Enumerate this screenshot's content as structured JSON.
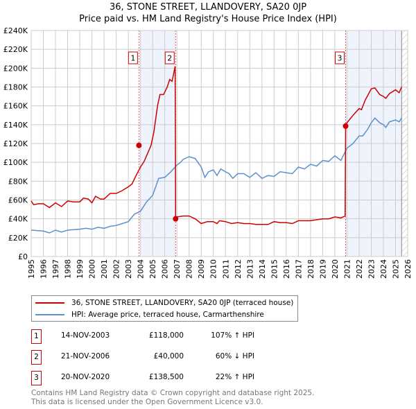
{
  "chart_data": {
    "type": "line",
    "title": "36, STONE STREET, LLANDOVERY, SA20 0JP",
    "subtitle": "Price paid vs. HM Land Registry's House Price Index (HPI)",
    "xlim": [
      1995,
      2026
    ],
    "ylim": [
      0,
      240000
    ],
    "x_ticks": [
      "1995",
      "1996",
      "1997",
      "1998",
      "1999",
      "2000",
      "2001",
      "2002",
      "2003",
      "2004",
      "2005",
      "2006",
      "2007",
      "2008",
      "2009",
      "2010",
      "2011",
      "2012",
      "2013",
      "2014",
      "2015",
      "2016",
      "2017",
      "2018",
      "2019",
      "2020",
      "2021",
      "2022",
      "2023",
      "2024",
      "2025",
      "2026"
    ],
    "y_ticks": [
      {
        "v": 0,
        "l": "£0"
      },
      {
        "v": 20000,
        "l": "£20K"
      },
      {
        "v": 40000,
        "l": "£40K"
      },
      {
        "v": 60000,
        "l": "£60K"
      },
      {
        "v": 80000,
        "l": "£80K"
      },
      {
        "v": 100000,
        "l": "£100K"
      },
      {
        "v": 120000,
        "l": "£120K"
      },
      {
        "v": 140000,
        "l": "£140K"
      },
      {
        "v": 160000,
        "l": "£160K"
      },
      {
        "v": 180000,
        "l": "£180K"
      },
      {
        "v": 200000,
        "l": "£200K"
      },
      {
        "v": 220000,
        "l": "£220K"
      },
      {
        "v": 240000,
        "l": "£240K"
      }
    ],
    "grid": true,
    "series": [
      {
        "name": "36, STONE STREET, LLANDOVERY, SA20 0JP (terraced house)",
        "color": "#cc0000",
        "x": [
          1995,
          1995.2,
          1995.6,
          1996,
          1996.5,
          1997,
          1997.5,
          1998,
          1998.5,
          1999,
          1999.3,
          1999.7,
          2000,
          2000.3,
          2000.7,
          2001,
          2001.5,
          2002,
          2002.5,
          2003,
          2003.3,
          2003.6,
          2004,
          2004.3,
          2004.6,
          2004.87,
          2005.1,
          2005.4,
          2005.6,
          2005.9,
          2006.2,
          2006.4,
          2006.6,
          2006.85,
          2006.89,
          2007,
          2007.5,
          2008,
          2008.5,
          2009,
          2009.5,
          2010,
          2010.3,
          2010.5,
          2011,
          2011.5,
          2012,
          2012.5,
          2013,
          2013.5,
          2014,
          2014.5,
          2015,
          2015.5,
          2016,
          2016.5,
          2017,
          2017.5,
          2018,
          2018.5,
          2019,
          2019.5,
          2020,
          2020.5,
          2020.85,
          2020.89,
          2021,
          2021.5,
          2022,
          2022.2,
          2022.5,
          2023,
          2023.3,
          2023.7,
          2024,
          2024.2,
          2024.5,
          2025,
          2025.3,
          2025.5
        ],
        "y": [
          59000,
          55000,
          56000,
          56000,
          52000,
          57000,
          53000,
          59000,
          58000,
          58000,
          62000,
          61000,
          57000,
          64000,
          61000,
          61000,
          67000,
          67000,
          70000,
          74000,
          77000,
          85000,
          95000,
          101000,
          110000,
          118000,
          132000,
          160000,
          172000,
          172000,
          180000,
          188000,
          186000,
          202000,
          40000,
          42000,
          43000,
          43000,
          40000,
          35000,
          37000,
          37000,
          35000,
          38000,
          37000,
          35000,
          36000,
          35000,
          35000,
          34000,
          34000,
          34000,
          37000,
          36000,
          36000,
          35000,
          38000,
          38000,
          38000,
          39000,
          40000,
          40000,
          42000,
          41000,
          43000,
          138500,
          142000,
          150000,
          157000,
          156000,
          166000,
          178000,
          179000,
          172000,
          170000,
          168000,
          173000,
          177000,
          174000,
          180000
        ]
      },
      {
        "name": "HPI: Average price, terraced house, Carmarthenshire",
        "color": "#5b8fd0",
        "x": [
          1995,
          1996,
          1996.5,
          1997,
          1997.5,
          1998,
          1999,
          1999.5,
          2000,
          2000.5,
          2001,
          2001.5,
          2002,
          2002.5,
          2003,
          2003.5,
          2004,
          2004.5,
          2005,
          2005.5,
          2006,
          2006.5,
          2007,
          2007.3,
          2007.5,
          2008,
          2008.5,
          2009,
          2009.3,
          2009.6,
          2010,
          2010.3,
          2010.6,
          2011,
          2011.3,
          2011.6,
          2012,
          2012.5,
          2013,
          2013.5,
          2014,
          2014.5,
          2015,
          2015.5,
          2016,
          2016.5,
          2017,
          2017.5,
          2018,
          2018.5,
          2019,
          2019.5,
          2020,
          2020.5,
          2021,
          2021.5,
          2022,
          2022.3,
          2022.7,
          2023,
          2023.3,
          2023.7,
          2024,
          2024.2,
          2024.5,
          2025,
          2025.3,
          2025.5
        ],
        "y": [
          28000,
          27000,
          25000,
          28000,
          26000,
          28000,
          29000,
          30000,
          29000,
          31000,
          30000,
          32000,
          33000,
          35000,
          37000,
          45000,
          48000,
          58000,
          65000,
          83000,
          84000,
          90000,
          97000,
          100000,
          103000,
          106000,
          104000,
          95000,
          84000,
          90000,
          92000,
          86000,
          93000,
          90000,
          88000,
          83000,
          88000,
          88000,
          84000,
          89000,
          83000,
          86000,
          85000,
          90000,
          89000,
          88000,
          95000,
          93000,
          98000,
          96000,
          102000,
          101000,
          107000,
          102000,
          115000,
          120000,
          128000,
          128000,
          135000,
          142000,
          147000,
          142000,
          140000,
          137000,
          143000,
          145000,
          143000,
          147000
        ]
      }
    ],
    "sales": [
      {
        "n": "1",
        "x": 2003.87,
        "y": 118000,
        "date": "14-NOV-2003",
        "price": "£118,000",
        "hpi": "107% ↑ HPI"
      },
      {
        "n": "2",
        "x": 2006.89,
        "y": 40000,
        "date": "21-NOV-2006",
        "price": "£40,000",
        "hpi": "60% ↓ HPI"
      },
      {
        "n": "3",
        "x": 2020.89,
        "y": 138500,
        "date": "20-NOV-2020",
        "price": "£138,500",
        "hpi": "22% ↑ HPI"
      }
    ],
    "shaded_ranges": [
      [
        2003.87,
        2006.89
      ],
      [
        2020.89,
        2025.5
      ]
    ],
    "hatched_from": 2025.5
  },
  "header": {
    "title": "36, STONE STREET, LLANDOVERY, SA20 0JP",
    "subtitle": "Price paid vs. HM Land Registry's House Price Index (HPI)"
  },
  "legend": {
    "red": "36, STONE STREET, LLANDOVERY, SA20 0JP (terraced house)",
    "blue": "HPI: Average price, terraced house, Carmarthenshire"
  },
  "footer": {
    "line1": "Contains HM Land Registry data © Crown copyright and database right 2025.",
    "line2": "This data is licensed under the Open Government Licence v3.0."
  }
}
